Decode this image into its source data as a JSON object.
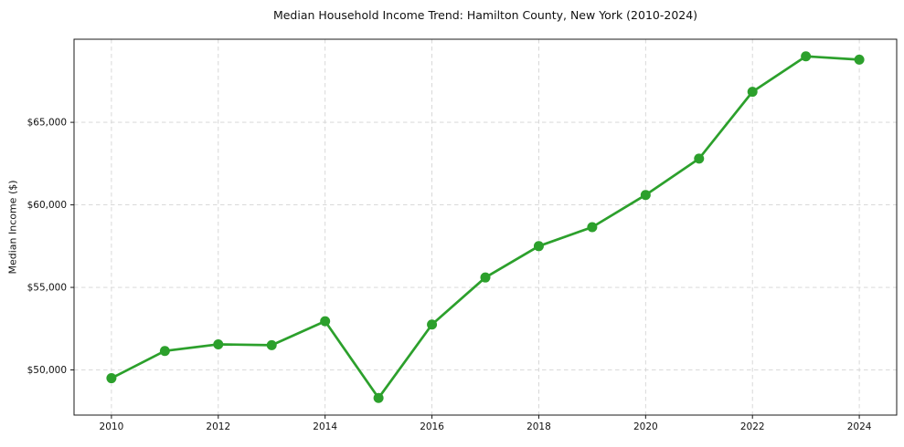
{
  "chart_data": {
    "type": "line",
    "title": "Median Household Income Trend: Hamilton County, New York (2010-2024)",
    "xlabel": "",
    "ylabel": "Median Income ($)",
    "x": [
      2010,
      2011,
      2012,
      2013,
      2014,
      2015,
      2016,
      2017,
      2018,
      2019,
      2020,
      2021,
      2022,
      2023,
      2024
    ],
    "values": [
      49500,
      51150,
      51550,
      51500,
      52950,
      48300,
      52750,
      55600,
      57500,
      58650,
      60600,
      62800,
      66850,
      69000,
      68800
    ],
    "xlim": [
      2009.3,
      2024.7
    ],
    "ylim": [
      47265,
      70035
    ],
    "xticks": [
      2010,
      2012,
      2014,
      2016,
      2018,
      2020,
      2022,
      2024
    ],
    "xtick_labels": [
      "2010",
      "2012",
      "2014",
      "2016",
      "2018",
      "2020",
      "2022",
      "2024"
    ],
    "yticks": [
      50000,
      55000,
      60000,
      65000
    ],
    "ytick_labels": [
      "$50,000",
      "$55,000",
      "$60,000",
      "$65,000"
    ],
    "line_color": "#2ca02c",
    "marker": "circle",
    "marker_radius": 5.5,
    "line_width": 2.7,
    "grid": true,
    "grid_color": "#d4d4d4",
    "spine_color": "#1a1a1a",
    "legend": "none",
    "background_color": "#ffffff"
  }
}
